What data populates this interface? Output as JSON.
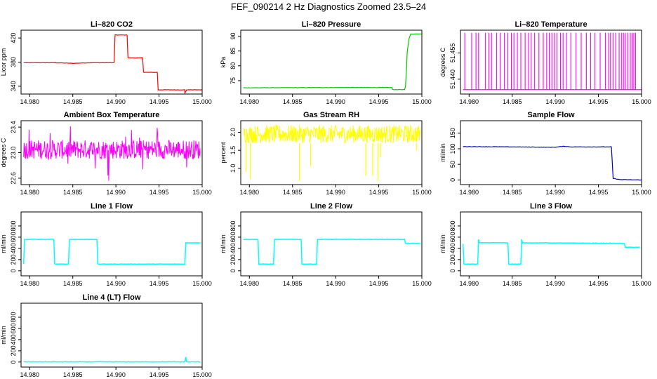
{
  "page_title": "FEF_090214  2 Hz Diagnostics Zoomed 23.5–24",
  "chart_data": [
    {
      "type": "line",
      "title": "Li–820 CO2",
      "ylabel": "Licor ppm",
      "color": "#ff0000",
      "xlim": [
        14.979,
        15.0
      ],
      "xticks": [
        14.98,
        14.985,
        14.99,
        14.995,
        15.0
      ],
      "xticklabels": [
        "14.980",
        "14.985",
        "14.990",
        "14.995",
        "15.000"
      ],
      "ylim": [
        327,
        433
      ],
      "yticks": [
        340,
        380,
        420
      ],
      "yticklabels": [
        "340",
        "380",
        "420"
      ],
      "points": [
        [
          14.9793,
          379
        ],
        [
          14.983,
          379
        ],
        [
          14.985,
          378
        ],
        [
          14.987,
          379
        ],
        [
          14.9898,
          379
        ],
        [
          14.9898,
          382
        ],
        [
          14.9899,
          425
        ],
        [
          14.9913,
          425
        ],
        [
          14.9914,
          387
        ],
        [
          14.9931,
          387
        ],
        [
          14.9932,
          363
        ],
        [
          14.9948,
          363
        ],
        [
          14.9949,
          334
        ],
        [
          14.998,
          334
        ],
        [
          14.998,
          329
        ],
        [
          14.9982,
          334
        ],
        [
          15.0,
          334
        ]
      ]
    },
    {
      "type": "line",
      "title": "Li–820 Pressure",
      "ylabel": "kPa",
      "color": "#00cc00",
      "xlim": [
        14.979,
        15.0
      ],
      "xticks": [
        14.98,
        14.985,
        14.99,
        14.995,
        15.0
      ],
      "xticklabels": [
        "14.980",
        "14.985",
        "14.990",
        "14.995",
        "15.000"
      ],
      "ylim": [
        70.5,
        92
      ],
      "yticks": [
        75,
        80,
        85,
        90
      ],
      "yticklabels": [
        "75",
        "80",
        "85",
        "90"
      ],
      "points": [
        [
          14.9793,
          72.6
        ],
        [
          14.99,
          72.7
        ],
        [
          14.9965,
          72.7
        ],
        [
          14.9966,
          72.0
        ],
        [
          14.998,
          72.0
        ],
        [
          14.9981,
          73.0
        ],
        [
          14.9982,
          78.0
        ],
        [
          14.9983,
          84.5
        ],
        [
          14.9985,
          89.0
        ],
        [
          14.9987,
          90.7
        ],
        [
          15.0,
          90.8
        ]
      ]
    },
    {
      "type": "line",
      "title": "Li–820 Temperature",
      "ylabel": "degrees C",
      "color": "#ff00ff",
      "xlim": [
        14.979,
        15.0
      ],
      "xticks": [
        14.98,
        14.985,
        14.99,
        14.995,
        15.0
      ],
      "xticklabels": [
        "14.980",
        "14.985",
        "14.990",
        "14.995",
        "15.000"
      ],
      "ylim": [
        51.4315,
        51.468
      ],
      "yticks": [
        51.44,
        51.455
      ],
      "yticklabels": [
        "51.440",
        "51.455"
      ],
      "baseline": 51.434,
      "spike_top": 51.4665,
      "spikes_x": [
        14.9795,
        14.9803,
        14.9808,
        14.9811,
        14.9819,
        14.9823,
        14.9826,
        14.9832,
        14.9836,
        14.9841,
        14.9845,
        14.9849,
        14.9852,
        14.9856,
        14.986,
        14.9865,
        14.9869,
        14.9872,
        14.9876,
        14.9881,
        14.9886,
        14.989,
        14.9893,
        14.9896,
        14.9899,
        14.9902,
        14.9906,
        14.9909,
        14.9913,
        14.9918,
        14.9924,
        14.993,
        14.9936,
        14.9941,
        14.9946,
        14.9952,
        14.9958,
        14.9962,
        14.9964,
        14.9967,
        14.997,
        14.9974,
        14.9977,
        14.9979,
        14.9981,
        14.9984,
        14.9987,
        14.9989,
        14.9991,
        14.9993
      ]
    },
    {
      "type": "line",
      "title": "Ambient Box Temperature",
      "ylabel": "degrees C",
      "color": "#ff00ff",
      "xlim": [
        14.979,
        15.0
      ],
      "xticks": [
        14.98,
        14.985,
        14.99,
        14.995,
        15.0
      ],
      "xticklabels": [
        "14.980",
        "14.985",
        "14.990",
        "14.995",
        "15.000"
      ],
      "ylim": [
        22.5,
        23.5
      ],
      "yticks": [
        22.6,
        23.0,
        23.4
      ],
      "yticklabels": [
        "22.6",
        "23.0",
        "23.4"
      ],
      "x_start": 14.9793,
      "x_end": 14.9998,
      "band": [
        22.9,
        23.2
      ],
      "spike_range": [
        22.55,
        23.45
      ]
    },
    {
      "type": "line",
      "title": "Gas Stream RH",
      "ylabel": "percent",
      "color": "#ffff00",
      "xlim": [
        14.979,
        15.0
      ],
      "xticks": [
        14.98,
        14.985,
        14.99,
        14.995,
        15.0
      ],
      "xticklabels": [
        "14.980",
        "14.985",
        "14.990",
        "14.995",
        "15.000"
      ],
      "ylim": [
        0.55,
        2.32
      ],
      "yticks": [
        1.0,
        1.5,
        2.0
      ],
      "yticklabels": [
        "1.0",
        "1.5",
        "2.0"
      ],
      "x_start": 14.9793,
      "x_end": 14.9998,
      "band": [
        1.7,
        2.2
      ],
      "dips": [
        [
          14.9796,
          0.9
        ],
        [
          14.9801,
          0.7
        ],
        [
          14.9858,
          0.65
        ],
        [
          14.9871,
          1.05
        ],
        [
          14.9935,
          0.8
        ],
        [
          14.9943,
          0.8
        ],
        [
          14.9949,
          0.65
        ],
        [
          14.9952,
          1.3
        ],
        [
          14.9994,
          1.5
        ]
      ]
    },
    {
      "type": "line",
      "title": "Sample Flow",
      "ylabel": "ml/min",
      "color": "#0000cc",
      "xlim": [
        14.979,
        15.0
      ],
      "xticks": [
        14.98,
        14.985,
        14.99,
        14.995,
        15.0
      ],
      "xticklabels": [
        "14.980",
        "14.985",
        "14.990",
        "14.995",
        "15.000"
      ],
      "ylim": [
        -15,
        190
      ],
      "yticks": [
        0,
        50,
        100,
        150
      ],
      "yticklabels": [
        "0",
        "50",
        "100",
        "150"
      ],
      "points": [
        [
          14.9793,
          107
        ],
        [
          14.985,
          106
        ],
        [
          14.989,
          105
        ],
        [
          14.99,
          105
        ],
        [
          14.991,
          108
        ],
        [
          14.9918,
          106
        ],
        [
          14.994,
          106
        ],
        [
          14.9965,
          106
        ],
        [
          14.9966,
          60
        ],
        [
          14.9967,
          5
        ],
        [
          14.9975,
          1
        ],
        [
          15.0,
          0
        ]
      ]
    },
    {
      "type": "line",
      "title": "Line 1 Flow",
      "ylabel": "ml/min",
      "color": "#00ffff",
      "xlim": [
        14.979,
        15.0
      ],
      "xticks": [
        14.98,
        14.985,
        14.99,
        14.995,
        15.0
      ],
      "xticklabels": [
        "14.980",
        "14.985",
        "14.990",
        "14.995",
        "15.000"
      ],
      "ylim": [
        -90,
        1050
      ],
      "yticks": [
        0,
        200,
        400,
        600,
        800
      ],
      "yticklabels": [
        "0",
        "200",
        "400",
        "600",
        "800"
      ],
      "points": [
        [
          14.9793,
          120
        ],
        [
          14.9794,
          560
        ],
        [
          14.9828,
          560
        ],
        [
          14.9829,
          120
        ],
        [
          14.9845,
          120
        ],
        [
          14.9846,
          560
        ],
        [
          14.9878,
          560
        ],
        [
          14.9879,
          120
        ],
        [
          14.998,
          120
        ],
        [
          14.9981,
          500
        ],
        [
          14.9998,
          500
        ]
      ]
    },
    {
      "type": "line",
      "title": "Line 2 Flow",
      "ylabel": "ml/min",
      "color": "#00ffff",
      "xlim": [
        14.979,
        15.0
      ],
      "xticks": [
        14.98,
        14.985,
        14.99,
        14.995,
        15.0
      ],
      "xticklabels": [
        "14.980",
        "14.985",
        "14.990",
        "14.995",
        "15.000"
      ],
      "ylim": [
        -90,
        1050
      ],
      "yticks": [
        0,
        200,
        400,
        600,
        800
      ],
      "yticklabels": [
        "0",
        "200",
        "400",
        "600",
        "800"
      ],
      "points": [
        [
          14.9793,
          560
        ],
        [
          14.981,
          560
        ],
        [
          14.9811,
          120
        ],
        [
          14.9828,
          120
        ],
        [
          14.9829,
          560
        ],
        [
          14.986,
          560
        ],
        [
          14.9861,
          120
        ],
        [
          14.9878,
          120
        ],
        [
          14.9879,
          560
        ],
        [
          14.998,
          560
        ],
        [
          14.9981,
          490
        ],
        [
          14.9998,
          490
        ]
      ]
    },
    {
      "type": "line",
      "title": "Line 3 Flow",
      "ylabel": "ml/min",
      "color": "#00ffff",
      "xlim": [
        14.979,
        15.0
      ],
      "xticks": [
        14.98,
        14.985,
        14.99,
        14.995,
        15.0
      ],
      "xticklabels": [
        "14.980",
        "14.985",
        "14.990",
        "14.995",
        "15.000"
      ],
      "ylim": [
        -90,
        1050
      ],
      "yticks": [
        0,
        200,
        400,
        600,
        800
      ],
      "yticklabels": [
        "0",
        "200",
        "400",
        "600",
        "800"
      ],
      "points": [
        [
          14.9793,
          480
        ],
        [
          14.9794,
          120
        ],
        [
          14.981,
          120
        ],
        [
          14.9811,
          560
        ],
        [
          14.9812,
          500
        ],
        [
          14.9845,
          500
        ],
        [
          14.9846,
          120
        ],
        [
          14.986,
          120
        ],
        [
          14.9861,
          560
        ],
        [
          14.9862,
          500
        ],
        [
          14.998,
          490
        ],
        [
          14.9981,
          420
        ],
        [
          14.9998,
          420
        ]
      ]
    },
    {
      "type": "line",
      "title": "Line 4 (LT) Flow",
      "ylabel": "ml/min",
      "color": "#00ffff",
      "xlim": [
        14.979,
        15.0
      ],
      "xticks": [
        14.98,
        14.985,
        14.99,
        14.995,
        15.0
      ],
      "xticklabels": [
        "14.980",
        "14.985",
        "14.990",
        "14.995",
        "15.000"
      ],
      "ylim": [
        -90,
        1050
      ],
      "yticks": [
        0,
        200,
        400,
        600,
        800
      ],
      "yticklabels": [
        "0",
        "200",
        "400",
        "600",
        "800"
      ],
      "points": [
        [
          14.9793,
          2
        ],
        [
          14.998,
          2
        ],
        [
          14.9981,
          90
        ],
        [
          14.9982,
          2
        ],
        [
          14.9998,
          2
        ]
      ]
    }
  ]
}
